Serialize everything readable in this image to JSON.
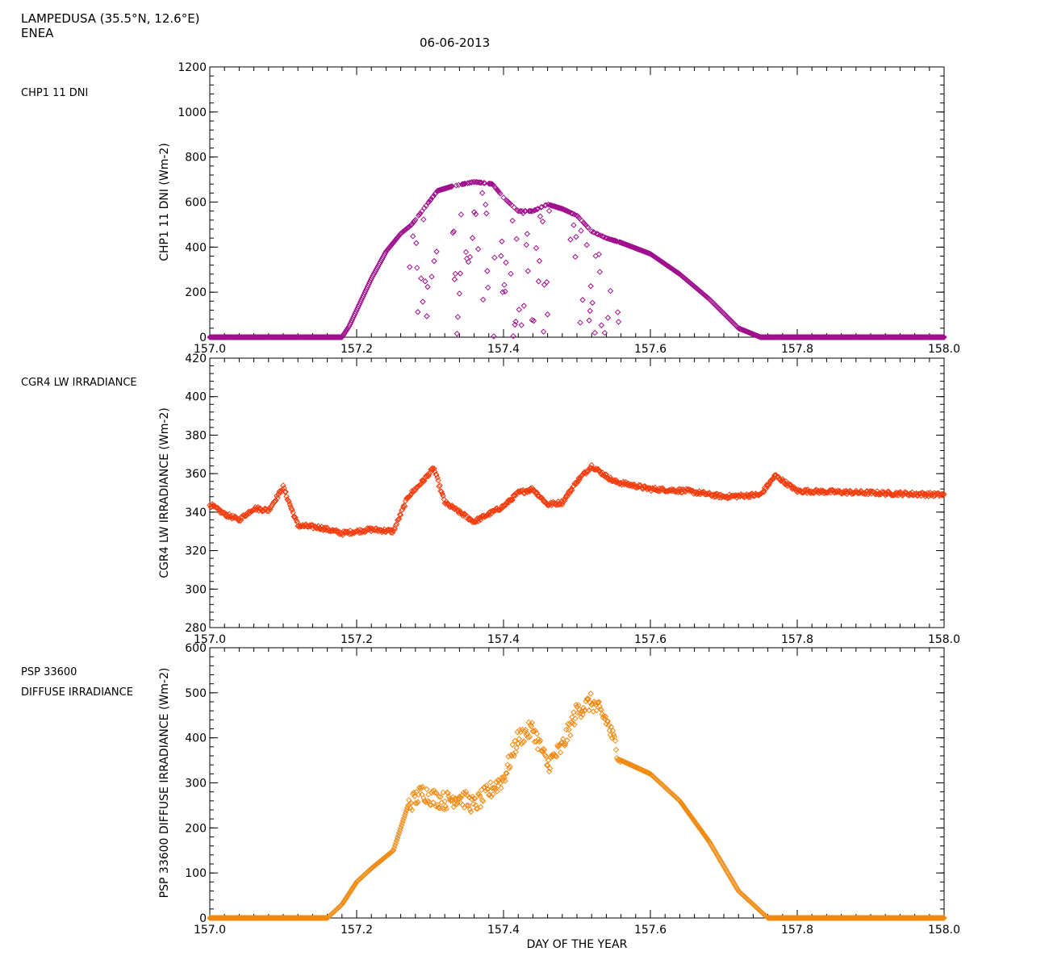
{
  "header": {
    "station": "LAMPEDUSA (35.5°N, 12.6°E)",
    "organization": "ENEA",
    "date": "06-06-2013"
  },
  "colors": {
    "dni": "#a0108e",
    "lw": "#f23d0f",
    "diffuse": "#f08a12"
  },
  "chart_data": [
    {
      "type": "scatter",
      "side_label": "CHP1 11 DNI",
      "ylabel": "CHP1 11 DNI (Wm-2)",
      "xlim": [
        157.0,
        158.0
      ],
      "ylim": [
        0,
        1200
      ],
      "x_ticks": [
        "157.0",
        "157.2",
        "157.4",
        "157.6",
        "157.8",
        "158.0"
      ],
      "y_ticks": [
        "0",
        "200",
        "400",
        "600",
        "800",
        "1000",
        "1200"
      ],
      "series": [
        {
          "x": [
            157.0,
            157.18,
            157.19,
            157.2,
            157.22,
            157.24,
            157.26,
            157.275,
            157.31,
            157.33,
            157.36,
            157.385,
            157.4,
            157.42,
            157.44,
            157.46,
            157.48,
            157.5,
            157.52,
            157.54,
            157.56,
            157.6,
            157.64,
            157.68,
            157.72,
            157.75,
            157.8,
            158.0
          ],
          "y": [
            0,
            0,
            50,
            120,
            260,
            380,
            460,
            500,
            650,
            670,
            690,
            680,
            620,
            560,
            560,
            590,
            570,
            540,
            470,
            440,
            420,
            370,
            280,
            170,
            40,
            0,
            0,
            0
          ]
        }
      ]
    },
    {
      "type": "scatter",
      "side_label": "CGR4 LW IRRADIANCE",
      "ylabel": "CGR4 LW IRRADIANCE (Wm-2)",
      "xlim": [
        157.0,
        158.0
      ],
      "ylim": [
        280,
        420
      ],
      "x_ticks": [
        "157.0",
        "157.2",
        "157.4",
        "157.6",
        "157.8",
        "158.0"
      ],
      "y_ticks": [
        "280",
        "300",
        "320",
        "340",
        "360",
        "380",
        "400",
        "420"
      ],
      "series": [
        {
          "x": [
            157.0,
            157.02,
            157.04,
            157.06,
            157.08,
            157.1,
            157.12,
            157.15,
            157.18,
            157.22,
            157.25,
            157.27,
            157.29,
            157.305,
            157.32,
            157.34,
            157.36,
            157.38,
            157.4,
            157.42,
            157.44,
            157.46,
            157.48,
            157.5,
            157.52,
            157.55,
            157.6,
            157.65,
            157.7,
            157.75,
            157.77,
            157.8,
            157.9,
            158.0
          ],
          "y": [
            344,
            339,
            336,
            342,
            341,
            353,
            333,
            332,
            329,
            331,
            330,
            348,
            356,
            363,
            345,
            340,
            335,
            339,
            343,
            350,
            352,
            344,
            345,
            356,
            364,
            356,
            352,
            351,
            348,
            349,
            359,
            351,
            350,
            349
          ]
        }
      ]
    },
    {
      "type": "scatter",
      "side_label_1": "PSP 33600",
      "side_label_2": "DIFFUSE IRRADIANCE",
      "ylabel": "PSP 33600 DIFFUSE IRRADIANCE (Wm-2)",
      "xlabel": "DAY OF THE YEAR",
      "xlim": [
        157.0,
        158.0
      ],
      "ylim": [
        0,
        600
      ],
      "x_ticks": [
        "157.0",
        "157.2",
        "157.4",
        "157.6",
        "157.8",
        "158.0"
      ],
      "y_ticks": [
        "0",
        "100",
        "200",
        "300",
        "400",
        "500",
        "600"
      ],
      "series": [
        {
          "x": [
            157.0,
            157.16,
            157.18,
            157.2,
            157.22,
            157.25,
            157.27,
            157.29,
            157.3,
            157.32,
            157.34,
            157.36,
            157.38,
            157.4,
            157.42,
            157.44,
            157.46,
            157.48,
            157.5,
            157.52,
            157.54,
            157.56,
            157.6,
            157.64,
            157.68,
            157.72,
            157.76,
            157.8,
            158.0
          ],
          "y": [
            0,
            0,
            30,
            80,
            110,
            150,
            250,
            280,
            270,
            260,
            270,
            250,
            280,
            310,
            400,
            420,
            340,
            380,
            460,
            480,
            440,
            350,
            320,
            260,
            170,
            60,
            0,
            0,
            0
          ]
        }
      ]
    }
  ]
}
